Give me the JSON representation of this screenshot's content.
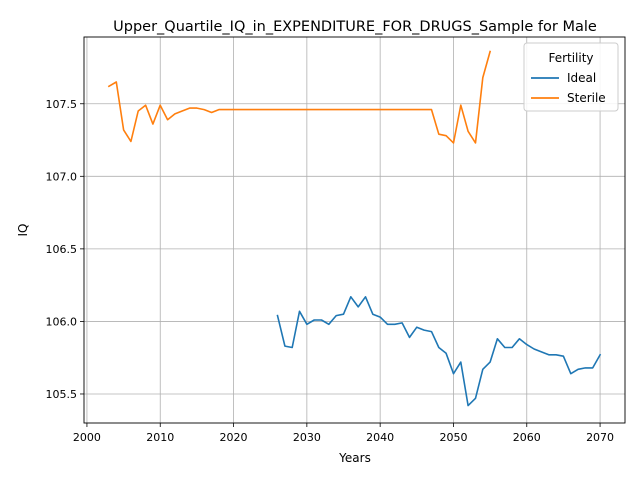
{
  "chart_data": {
    "type": "line",
    "title": "Upper_Quartile_IQ_in_EXPENDITURE_FOR_DRUGS_Sample for Male",
    "xlabel": "Years",
    "ylabel": "IQ",
    "xlim": [
      1999.6,
      2073.4
    ],
    "ylim": [
      105.3,
      107.96
    ],
    "x_ticks": [
      2000,
      2010,
      2020,
      2030,
      2040,
      2050,
      2060,
      2070
    ],
    "y_ticks": [
      105.5,
      106.0,
      106.5,
      107.0,
      107.5
    ],
    "grid": true,
    "legend": {
      "title": "Fertility",
      "placement": "top-right"
    },
    "series": [
      {
        "name": "Ideal",
        "color": "#1f77b4",
        "x": [
          2026,
          2027,
          2028,
          2029,
          2030,
          2031,
          2032,
          2033,
          2034,
          2035,
          2036,
          2037,
          2038,
          2039,
          2040,
          2041,
          2042,
          2043,
          2044,
          2045,
          2046,
          2047,
          2048,
          2049,
          2050,
          2051,
          2052,
          2053,
          2054,
          2055,
          2056,
          2057,
          2058,
          2059,
          2060,
          2061,
          2062,
          2063,
          2064,
          2065,
          2066,
          2067,
          2068,
          2069,
          2070
        ],
        "y": [
          106.04,
          105.83,
          105.82,
          106.07,
          105.98,
          106.01,
          106.01,
          105.98,
          106.04,
          106.05,
          106.17,
          106.1,
          106.17,
          106.05,
          106.03,
          105.98,
          105.98,
          105.99,
          105.89,
          105.96,
          105.94,
          105.93,
          105.82,
          105.78,
          105.64,
          105.72,
          105.42,
          105.47,
          105.67,
          105.72,
          105.88,
          105.82,
          105.82,
          105.88,
          105.84,
          105.81,
          105.79,
          105.77,
          105.77,
          105.76,
          105.64,
          105.67,
          105.68,
          105.68,
          105.77
        ]
      },
      {
        "name": "Sterile",
        "color": "#ff7f0e",
        "x": [
          2003,
          2004,
          2005,
          2006,
          2007,
          2008,
          2009,
          2010,
          2011,
          2012,
          2013,
          2014,
          2015,
          2016,
          2017,
          2018,
          2019,
          2020,
          2021,
          2022,
          2023,
          2024,
          2025,
          2026,
          2027,
          2028,
          2029,
          2030,
          2031,
          2032,
          2033,
          2034,
          2035,
          2036,
          2037,
          2038,
          2039,
          2040,
          2041,
          2042,
          2043,
          2044,
          2045,
          2046,
          2047,
          2048,
          2049,
          2050,
          2051,
          2052,
          2053,
          2054,
          2055
        ],
        "y": [
          107.62,
          107.65,
          107.32,
          107.24,
          107.45,
          107.49,
          107.36,
          107.49,
          107.39,
          107.43,
          107.45,
          107.47,
          107.47,
          107.46,
          107.44,
          107.46,
          107.46,
          107.46,
          107.46,
          107.46,
          107.46,
          107.46,
          107.46,
          107.46,
          107.46,
          107.46,
          107.46,
          107.46,
          107.46,
          107.46,
          107.46,
          107.46,
          107.46,
          107.46,
          107.46,
          107.46,
          107.46,
          107.46,
          107.46,
          107.46,
          107.46,
          107.46,
          107.46,
          107.46,
          107.46,
          107.29,
          107.28,
          107.23,
          107.49,
          107.31,
          107.23,
          107.68,
          107.86
        ]
      }
    ]
  }
}
